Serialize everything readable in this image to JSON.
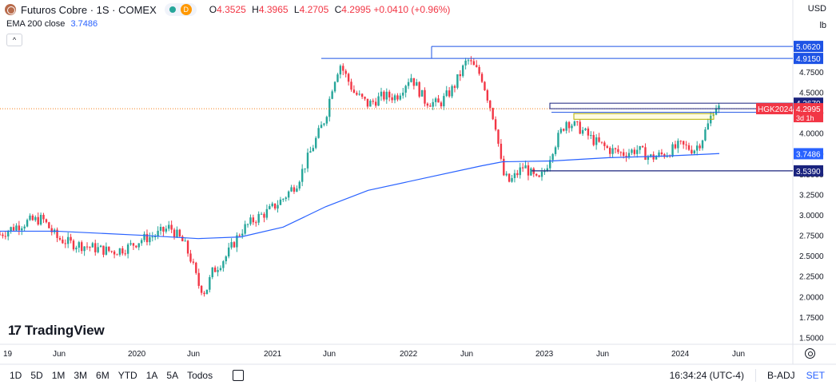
{
  "header": {
    "title": "Futuros Cobre · 1S · COMEX",
    "interval_badge": "D",
    "ohlc": [
      {
        "key": "O",
        "value": "4.3525"
      },
      {
        "key": "H",
        "value": "4.3965"
      },
      {
        "key": "L",
        "value": "4.2705"
      },
      {
        "key": "C",
        "value": "4.2995"
      },
      {
        "key": "",
        "value": "+0.0410 (+0.96%)"
      }
    ],
    "ema_label": "EMA 200 close",
    "ema_value": "3.7486",
    "collapse_glyph": "^"
  },
  "top_right": {
    "currency": "USD",
    "unit": "lb"
  },
  "logo_text": "TradingView",
  "bottom_bar": {
    "timeframes": [
      "1D",
      "5D",
      "1M",
      "3M",
      "6M",
      "YTD",
      "1A",
      "5A",
      "Todos"
    ],
    "clock": "16:34:24 (UTC-4)",
    "adjust": "B-ADJ",
    "session": "SET"
  },
  "colors": {
    "up": "#26a69a",
    "down": "#f23645",
    "ema": "#2962ff",
    "level": "#1e53e5",
    "zone": "#b7b100",
    "price_line": "#f57f17"
  },
  "chart_data": {
    "type": "candlestick",
    "x_ticks": [
      "19",
      "Jun",
      "2020",
      "Jun",
      "2021",
      "Jun",
      "2022",
      "Jun",
      "2023",
      "Jun",
      "2024",
      "Jun"
    ],
    "y_ticks": [
      "1.5000",
      "1.7500",
      "2.0000",
      "2.2500",
      "2.5000",
      "2.7500",
      "3.0000",
      "3.2500",
      "3.5000",
      "3.7500",
      "4.0000",
      "4.2500",
      "4.5000",
      "4.7500"
    ],
    "y_range": [
      1.4,
      5.1
    ],
    "weekly_close_path": [
      [
        2019.4,
        2.76
      ],
      [
        2019.5,
        2.85
      ],
      [
        2019.6,
        2.92
      ],
      [
        2019.7,
        2.95
      ],
      [
        2019.8,
        2.72
      ],
      [
        2019.9,
        2.65
      ],
      [
        2020.0,
        2.62
      ],
      [
        2020.1,
        2.58
      ],
      [
        2020.2,
        2.55
      ],
      [
        2020.3,
        2.6
      ],
      [
        2020.4,
        2.7
      ],
      [
        2020.5,
        2.75
      ],
      [
        2020.6,
        2.85
      ],
      [
        2020.7,
        2.65
      ],
      [
        2020.75,
        2.45
      ],
      [
        2020.8,
        2.15
      ],
      [
        2020.85,
        2.05
      ],
      [
        2020.9,
        2.3
      ],
      [
        2021.0,
        2.5
      ],
      [
        2021.1,
        2.8
      ],
      [
        2021.2,
        2.95
      ],
      [
        2021.3,
        3.05
      ],
      [
        2021.4,
        3.2
      ],
      [
        2021.5,
        3.4
      ],
      [
        2021.6,
        3.8
      ],
      [
        2021.7,
        4.2
      ],
      [
        2021.75,
        4.6
      ],
      [
        2021.8,
        4.85
      ],
      [
        2021.9,
        4.5
      ],
      [
        2022.0,
        4.35
      ],
      [
        2022.1,
        4.45
      ],
      [
        2022.2,
        4.45
      ],
      [
        2022.3,
        4.7
      ],
      [
        2022.4,
        4.4
      ],
      [
        2022.5,
        4.35
      ],
      [
        2022.6,
        4.55
      ],
      [
        2022.7,
        4.9
      ],
      [
        2022.8,
        4.7
      ],
      [
        2022.85,
        4.4
      ],
      [
        2022.9,
        4.1
      ],
      [
        2022.95,
        3.5
      ],
      [
        2023.0,
        3.4
      ],
      [
        2023.1,
        3.6
      ],
      [
        2023.2,
        3.4
      ],
      [
        2023.25,
        3.55
      ],
      [
        2023.3,
        3.8
      ],
      [
        2023.4,
        4.15
      ],
      [
        2023.5,
        4.05
      ],
      [
        2023.6,
        3.9
      ],
      [
        2023.7,
        3.8
      ],
      [
        2023.8,
        3.75
      ],
      [
        2023.9,
        3.8
      ],
      [
        2024.0,
        3.7
      ],
      [
        2024.1,
        3.75
      ],
      [
        2024.2,
        3.85
      ],
      [
        2024.3,
        3.8
      ],
      [
        2024.35,
        3.9
      ],
      [
        2024.4,
        4.1
      ],
      [
        2024.45,
        4.35
      ],
      [
        2024.48,
        4.3
      ]
    ],
    "ema_200": [
      [
        2019.4,
        2.8
      ],
      [
        2019.8,
        2.8
      ],
      [
        2020.4,
        2.75
      ],
      [
        2020.8,
        2.71
      ],
      [
        2021.1,
        2.73
      ],
      [
        2021.4,
        2.85
      ],
      [
        2021.7,
        3.1
      ],
      [
        2022.0,
        3.3
      ],
      [
        2022.4,
        3.45
      ],
      [
        2022.8,
        3.6
      ],
      [
        2022.95,
        3.65
      ],
      [
        2023.3,
        3.66
      ],
      [
        2023.7,
        3.7
      ],
      [
        2024.1,
        3.72
      ],
      [
        2024.48,
        3.75
      ]
    ],
    "levels": [
      {
        "label": "5.0620",
        "price": 5.062
      },
      {
        "label": "4.9150",
        "price": 4.915
      },
      {
        "label": "4.3670",
        "price": 4.367
      },
      {
        "label": "4.2545",
        "price": 4.2545
      },
      {
        "label": "3.7486",
        "price": 3.7486
      },
      {
        "label": "3.5390",
        "price": 3.539
      }
    ],
    "current_price": {
      "label": "4.2995",
      "symbol": "HGK2024",
      "countdown": "3d 1h",
      "price": 4.2995
    }
  }
}
